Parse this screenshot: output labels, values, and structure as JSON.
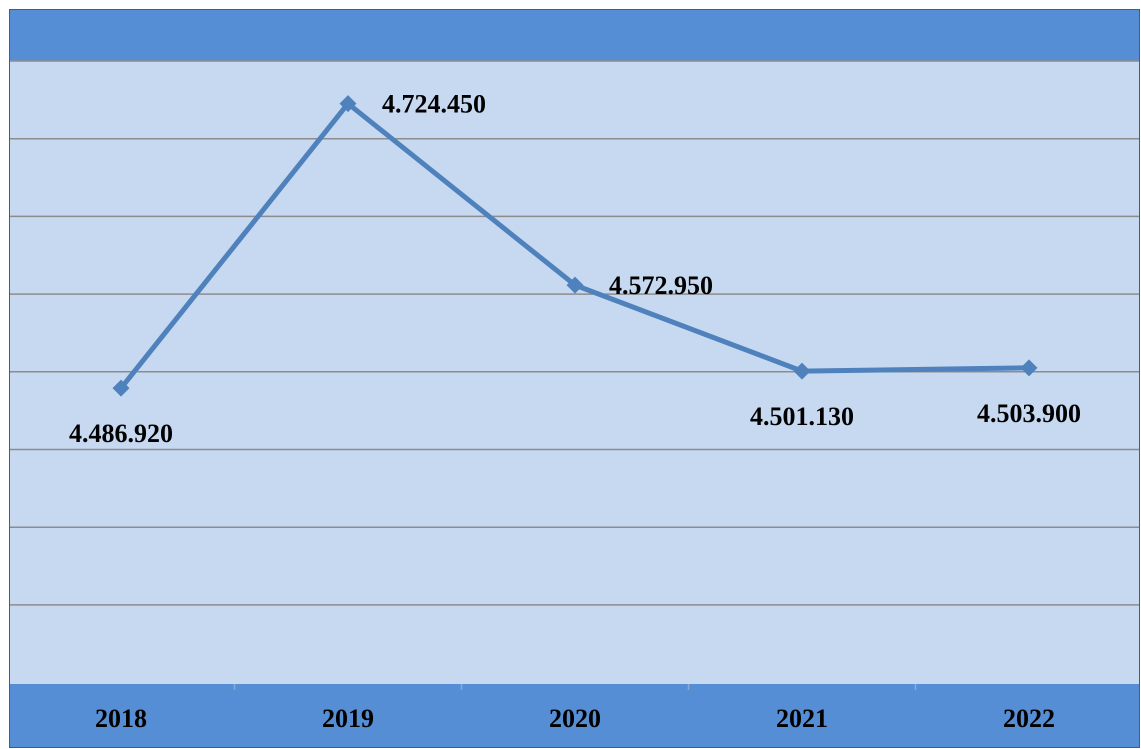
{
  "chart_data": {
    "type": "line",
    "categories": [
      "2018",
      "2019",
      "2020",
      "2021",
      "2022"
    ],
    "values": [
      4486920,
      4724450,
      4572950,
      4501130,
      4503900
    ],
    "value_labels": [
      "4.486.920",
      "4.724.450",
      "4.572.950",
      "4.501.130",
      "4.503.900"
    ],
    "title": "",
    "xlabel": "",
    "ylabel": "",
    "ylim": [
      4240000,
      4760000
    ],
    "grid": true,
    "legend": "none",
    "colors": {
      "plot_background": "#C6D9F1",
      "band": "#558ED5",
      "line": "#4F81BD",
      "gridline": "#8C8C8C",
      "border": "#595959",
      "text": "#000000"
    }
  }
}
